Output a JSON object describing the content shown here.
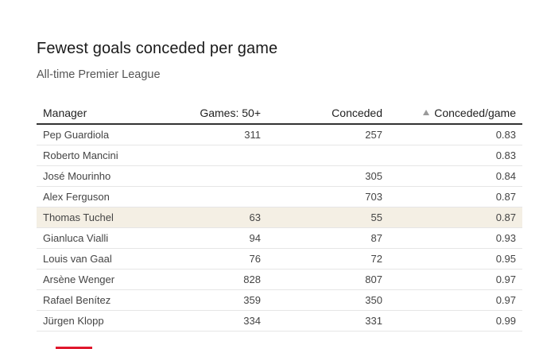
{
  "title": "Fewest goals conceded per game",
  "subtitle": "All-time Premier League",
  "table": {
    "columns": {
      "manager": "Manager",
      "games": "Games: 50+",
      "conceded": "Conceded",
      "rate": "Conceded/game"
    },
    "sort": {
      "column": "Conceded/game",
      "direction": "ascending",
      "icon": "sort-asc-icon"
    },
    "rows": [
      {
        "manager": "Pep Guardiola",
        "games": "311",
        "conceded": "257",
        "rate": "0.83",
        "highlight": false
      },
      {
        "manager": "Roberto Mancini",
        "games": "",
        "conceded": "",
        "rate": "0.83",
        "highlight": false
      },
      {
        "manager": "José Mourinho",
        "games": "",
        "conceded": "305",
        "rate": "0.84",
        "highlight": false
      },
      {
        "manager": "Alex Ferguson",
        "games": "",
        "conceded": "703",
        "rate": "0.87",
        "highlight": false
      },
      {
        "manager": "Thomas Tuchel",
        "games": "63",
        "conceded": "55",
        "rate": "0.87",
        "highlight": true
      },
      {
        "manager": "Gianluca Vialli",
        "games": "94",
        "conceded": "87",
        "rate": "0.93",
        "highlight": false
      },
      {
        "manager": "Louis van Gaal",
        "games": "76",
        "conceded": "72",
        "rate": "0.95",
        "highlight": false
      },
      {
        "manager": "Arsène Wenger",
        "games": "828",
        "conceded": "807",
        "rate": "0.97",
        "highlight": false
      },
      {
        "manager": "Rafael Benítez",
        "games": "359",
        "conceded": "350",
        "rate": "0.97",
        "highlight": false
      },
      {
        "manager": "Jürgen Klopp",
        "games": "334",
        "conceded": "331",
        "rate": "0.99",
        "highlight": false
      }
    ]
  },
  "colors": {
    "highlight_row": "#f4efe4",
    "accent": "#e0182d"
  }
}
